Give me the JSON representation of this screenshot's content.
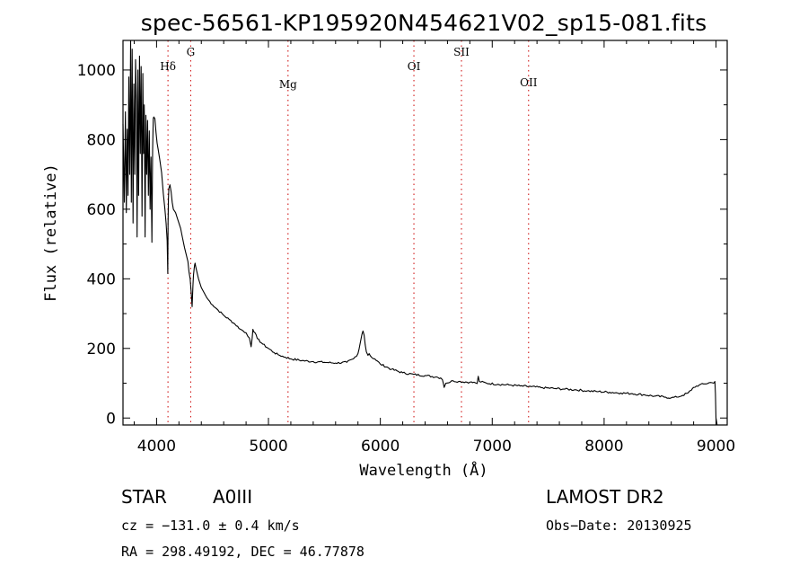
{
  "chart_data": {
    "type": "line",
    "title": "spec-56561-KP195920N454621V02_sp15-081.fits",
    "xlabel": "Wavelength (Å)",
    "ylabel": "Flux (relative)",
    "xlim": [
      3700,
      9100
    ],
    "ylim": [
      -20,
      1085
    ],
    "x_ticks": [
      4000,
      5000,
      6000,
      7000,
      8000,
      9000
    ],
    "y_ticks": [
      0,
      200,
      400,
      600,
      800,
      1000
    ],
    "series": [
      {
        "x": [
          3700,
          3712,
          3722,
          3730,
          3738,
          3745,
          3752,
          3760,
          3768,
          3775,
          3782,
          3790,
          3797,
          3805,
          3812,
          3820,
          3826,
          3833,
          3840,
          3848,
          3855,
          3862,
          3870,
          3877,
          3884,
          3890,
          3897,
          3905,
          3912,
          3920,
          3927,
          3935,
          3942,
          3950,
          3958,
          3965,
          3970,
          3975,
          3985,
          3995,
          4005,
          4015,
          4030,
          4045,
          4060,
          4075,
          4085,
          4095,
          4100,
          4103,
          4106,
          4110,
          4120,
          4130,
          4140,
          4150,
          4170,
          4185,
          4200,
          4215,
          4230,
          4250,
          4265,
          4280,
          4290,
          4300,
          4310,
          4318,
          4325,
          4330,
          4336,
          4340,
          4344,
          4350,
          4360,
          4375,
          4400,
          4450,
          4500,
          4550,
          4600,
          4650,
          4700,
          4750,
          4800,
          4830,
          4845,
          4855,
          4861,
          4868,
          4880,
          4900,
          4950,
          5000,
          5050,
          5100,
          5150,
          5200,
          5300,
          5400,
          5500,
          5600,
          5700,
          5760,
          5800,
          5820,
          5835,
          5845,
          5855,
          5865,
          5875,
          5890,
          5900,
          5920,
          5950,
          6000,
          6100,
          6200,
          6300,
          6400,
          6500,
          6540,
          6555,
          6563,
          6570,
          6585,
          6650,
          6700,
          6800,
          6850,
          6865,
          6870,
          6875,
          6885,
          6950,
          7050,
          7150,
          7250,
          7350,
          7450,
          7550,
          7650,
          7750,
          7850,
          7950,
          8050,
          8150,
          8250,
          8350,
          8450,
          8550,
          8600,
          8650,
          8700,
          8750,
          8780,
          8800,
          8850,
          8900,
          8950,
          8980,
          8990,
          8995,
          9000,
          9010
        ],
        "y": [
          845,
          620,
          880,
          590,
          830,
          640,
          980,
          700,
          1085,
          620,
          1060,
          560,
          960,
          700,
          1030,
          900,
          520,
          1000,
          640,
          1040,
          760,
          1010,
          580,
          990,
          760,
          900,
          520,
          870,
          700,
          855,
          640,
          825,
          600,
          750,
          505,
          770,
          860,
          865,
          860,
          820,
          790,
          770,
          740,
          705,
          645,
          600,
          560,
          510,
          415,
          560,
          630,
          660,
          670,
          650,
          620,
          600,
          590,
          575,
          560,
          545,
          520,
          490,
          470,
          450,
          420,
          400,
          360,
          320,
          380,
          410,
          430,
          440,
          445,
          435,
          420,
          400,
          375,
          345,
          325,
          310,
          295,
          283,
          270,
          255,
          245,
          230,
          205,
          230,
          255,
          248,
          245,
          228,
          212,
          200,
          188,
          180,
          175,
          170,
          165,
          162,
          160,
          158,
          160,
          170,
          185,
          215,
          240,
          250,
          238,
          210,
          190,
          180,
          185,
          175,
          170,
          155,
          140,
          130,
          125,
          122,
          118,
          115,
          110,
          100,
          88,
          100,
          107,
          105,
          103,
          101,
          99,
          110,
          120,
          105,
          100,
          97,
          95,
          92,
          90,
          87,
          85,
          83,
          81,
          78,
          76,
          74,
          72,
          70,
          67,
          63,
          60,
          58,
          60,
          65,
          72,
          80,
          88,
          95,
          98,
          102,
          100,
          105,
          70,
          0,
          -20
        ]
      }
    ],
    "spectral_lines": [
      {
        "name": "Hδ",
        "x": 4102
      },
      {
        "name": "G",
        "x": 4305
      },
      {
        "name": "Mg",
        "x": 5175
      },
      {
        "name": "OI",
        "x": 6300
      },
      {
        "name": "SII",
        "x": 6725
      },
      {
        "name": "OII",
        "x": 7325
      }
    ]
  },
  "info": {
    "object_type": "STAR",
    "subclass": "A0III",
    "survey": "LAMOST DR2",
    "cz": "cz = −131.0 ± 0.4 km/s",
    "obs_date": "Obs−Date: 20130925",
    "coords": "RA = 298.49192, DEC =  46.77878"
  },
  "colors": {
    "spectrum": "#000000",
    "line_markers": "#cc0000",
    "axes": "#000000",
    "background": "#ffffff"
  }
}
